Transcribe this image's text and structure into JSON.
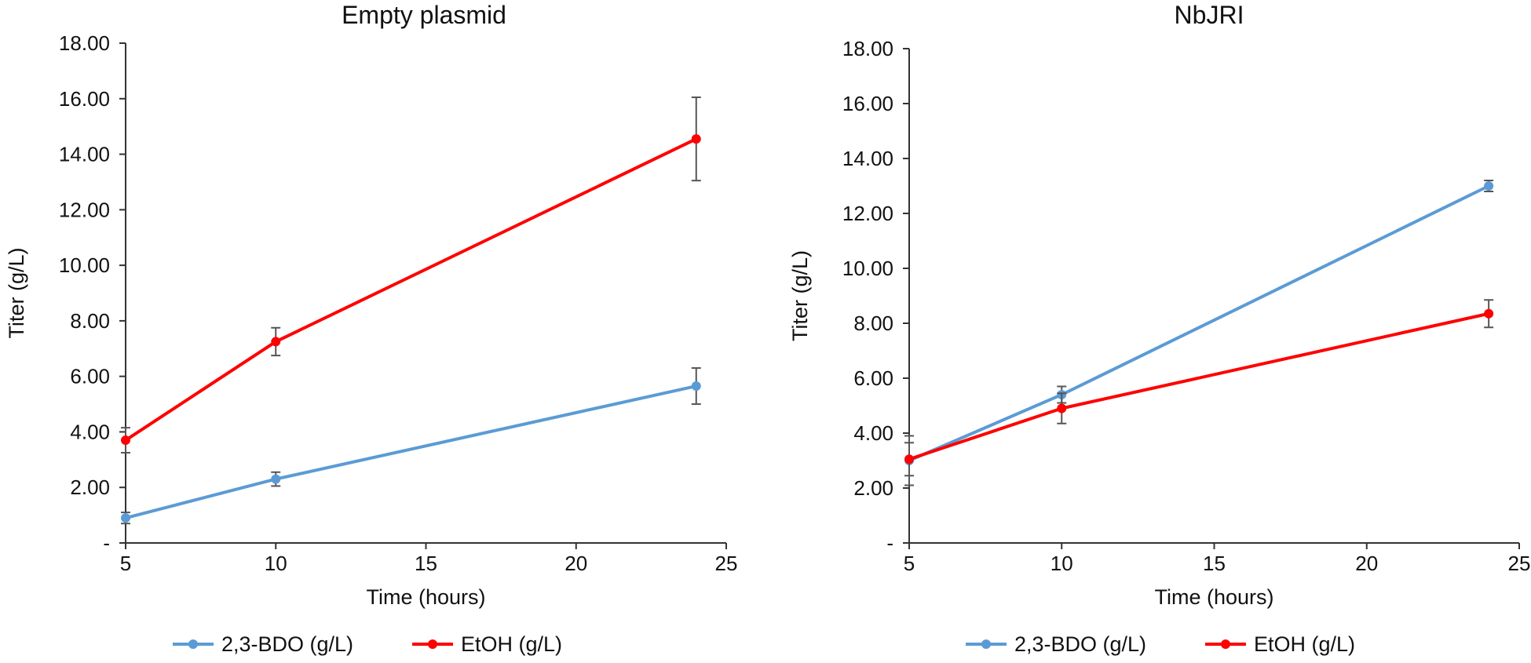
{
  "chart_data": [
    {
      "type": "line",
      "title": "Empty plasmid",
      "xlabel": "Time (hours)",
      "ylabel": "Titer (g/L)",
      "xlim": [
        5,
        25
      ],
      "ylim": [
        0,
        18
      ],
      "xticks": [
        "5",
        "10",
        "15",
        "20",
        "25"
      ],
      "yticks": [
        "-",
        "2.00",
        "4.00",
        "6.00",
        "8.00",
        "10.00",
        "12.00",
        "14.00",
        "16.00",
        "18.00"
      ],
      "x": [
        5,
        10,
        24
      ],
      "grid": false,
      "legend_position": "bottom",
      "series": [
        {
          "name": "2,3-BDO (g/L)",
          "color": "#5b9bd5",
          "values": [
            0.9,
            2.3,
            5.65
          ],
          "errors": [
            0.2,
            0.25,
            0.65
          ]
        },
        {
          "name": "EtOH (g/L)",
          "color": "#ff0000",
          "values": [
            3.7,
            7.25,
            14.55
          ],
          "errors": [
            0.45,
            0.5,
            1.5
          ]
        }
      ]
    },
    {
      "type": "line",
      "title": "NbJRI",
      "xlabel": "Time (hours)",
      "ylabel": "Titer (g/L)",
      "xlim": [
        5,
        25
      ],
      "ylim": [
        0,
        18
      ],
      "xticks": [
        "5",
        "10",
        "15",
        "20",
        "25"
      ],
      "yticks": [
        "-",
        "2.00",
        "4.00",
        "6.00",
        "8.00",
        "10.00",
        "12.00",
        "14.00",
        "16.00",
        "18.00"
      ],
      "x": [
        5,
        10,
        24
      ],
      "grid": false,
      "legend_position": "bottom",
      "series": [
        {
          "name": "2,3-BDO (g/L)",
          "color": "#5b9bd5",
          "values": [
            3.0,
            5.4,
            13.0
          ],
          "errors": [
            0.9,
            0.3,
            0.2
          ]
        },
        {
          "name": "EtOH (g/L)",
          "color": "#ff0000",
          "values": [
            3.05,
            4.9,
            8.35
          ],
          "errors": [
            0.6,
            0.55,
            0.5
          ]
        }
      ]
    }
  ]
}
